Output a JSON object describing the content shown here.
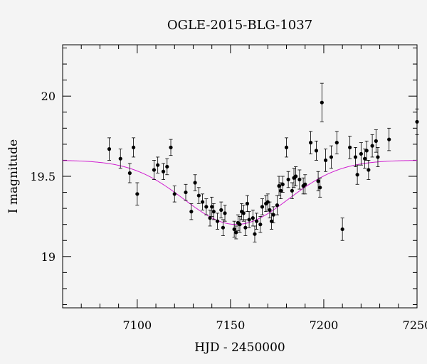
{
  "chart_data": {
    "type": "scatter",
    "title": "OGLE-2015-BLG-1037",
    "xlabel": "HJD - 2450000",
    "ylabel": "I magnitude",
    "xlim": [
      7060,
      7250
    ],
    "ylim": [
      20.32,
      18.68
    ],
    "y_inverted": true,
    "x_ticks": [
      7100,
      7150,
      7200,
      7250
    ],
    "x_tick_labels": [
      "7100",
      "7150",
      "7200",
      "7250"
    ],
    "y_ticks": [
      19,
      19.5,
      20
    ],
    "y_tick_labels": [
      "19",
      "19.5",
      "20"
    ],
    "grid": false,
    "colors": {
      "points": "#000000",
      "model": "#d020d0",
      "background": "#f4f4f4"
    },
    "model": {
      "name": "",
      "t0": 7153,
      "baseline": 19.6,
      "peak": 19.2,
      "sigma": 28
    },
    "series": [
      {
        "name": "",
        "x": [
          7085,
          7091,
          7096,
          7098,
          7100,
          7109,
          7111,
          7114,
          7116,
          7118,
          7120,
          7126,
          7129,
          7131,
          7133,
          7135,
          7137,
          7139,
          7140,
          7141,
          7143,
          7145,
          7146,
          7147,
          7152,
          7153,
          7154,
          7155,
          7156,
          7157,
          7158,
          7159,
          7160,
          7162,
          7163,
          7164,
          7166,
          7167,
          7169,
          7170,
          7171,
          7172,
          7173,
          7175,
          7176,
          7177,
          7178,
          7180,
          7181,
          7183,
          7184,
          7185,
          7187,
          7189,
          7190,
          7193,
          7196,
          7197,
          7198,
          7199,
          7201,
          7204,
          7207,
          7210,
          7214,
          7217,
          7218,
          7220,
          7222,
          7223,
          7224,
          7226,
          7228,
          7229,
          7235,
          7250
        ],
        "y": [
          19.67,
          19.61,
          19.52,
          19.68,
          19.39,
          19.54,
          19.57,
          19.53,
          19.56,
          19.68,
          19.39,
          19.4,
          19.28,
          19.46,
          19.38,
          19.34,
          19.31,
          19.24,
          19.31,
          19.28,
          19.22,
          19.29,
          19.18,
          19.27,
          19.17,
          19.15,
          19.21,
          19.2,
          19.28,
          19.27,
          19.18,
          19.33,
          19.23,
          19.24,
          19.14,
          19.22,
          19.2,
          19.31,
          19.33,
          19.34,
          19.29,
          19.22,
          19.26,
          19.32,
          19.44,
          19.41,
          19.45,
          19.68,
          19.48,
          19.41,
          19.49,
          19.5,
          19.48,
          19.44,
          19.45,
          19.71,
          19.66,
          19.47,
          19.43,
          19.96,
          19.6,
          19.62,
          19.71,
          19.17,
          19.68,
          19.62,
          19.51,
          19.64,
          19.61,
          19.66,
          19.54,
          19.69,
          19.72,
          19.62,
          19.73,
          19.84
        ],
        "err": [
          0.07,
          0.06,
          0.06,
          0.06,
          0.07,
          0.06,
          0.05,
          0.05,
          0.05,
          0.05,
          0.05,
          0.05,
          0.05,
          0.05,
          0.05,
          0.05,
          0.05,
          0.05,
          0.06,
          0.05,
          0.05,
          0.05,
          0.05,
          0.05,
          0.05,
          0.04,
          0.05,
          0.05,
          0.05,
          0.05,
          0.05,
          0.05,
          0.05,
          0.05,
          0.05,
          0.05,
          0.05,
          0.05,
          0.05,
          0.05,
          0.05,
          0.05,
          0.05,
          0.06,
          0.06,
          0.05,
          0.05,
          0.06,
          0.05,
          0.05,
          0.06,
          0.06,
          0.06,
          0.05,
          0.06,
          0.07,
          0.06,
          0.06,
          0.06,
          0.12,
          0.07,
          0.07,
          0.07,
          0.07,
          0.07,
          0.06,
          0.06,
          0.07,
          0.06,
          0.06,
          0.06,
          0.07,
          0.07,
          0.06,
          0.07,
          0.08
        ]
      }
    ]
  }
}
